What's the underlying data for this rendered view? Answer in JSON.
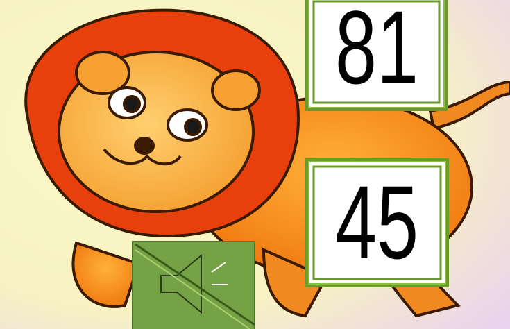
{
  "cards": [
    {
      "label": "81"
    },
    {
      "label": "45"
    }
  ]
}
